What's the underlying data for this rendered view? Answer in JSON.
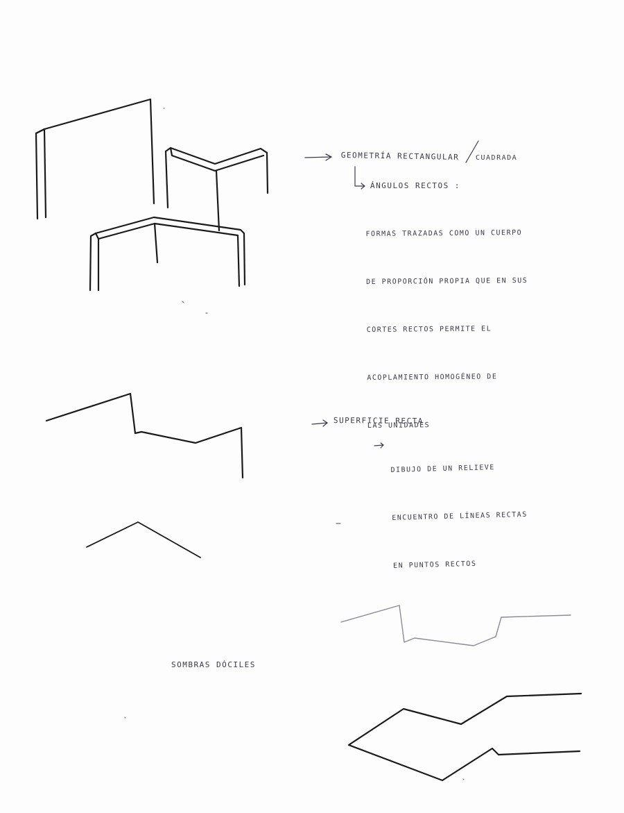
{
  "notes": {
    "section1": {
      "heading": "GEOMETRÍA RECTANGULAR",
      "heading_alt": "CUADRADA",
      "subheading": "ÁNGULOS RECTOS :",
      "lines": [
        "FORMAS TRAZADAS COMO UN CUERPO",
        "DE PROPORCIÓN PROPIA QUE EN SUS",
        "CORTES RECTOS PERMITE EL",
        "ACOPLAMIENTO HOMOGÉNEO DE",
        "LAS UNIDADES"
      ]
    },
    "section2": {
      "heading": "SUPERFICIE RECTA",
      "lines": [
        "DIBUJO DE UN RELIEVE",
        "ENCUENTRO DE LÍNEAS RECTAS",
        "EN PUNTOS RECTOS"
      ]
    },
    "section3": {
      "label": "SOMBRAS DÓCILES"
    }
  },
  "colors": {
    "ink": "#1a1a1a",
    "pencil": "#3a3a4a",
    "faint": "#8a8a96"
  }
}
